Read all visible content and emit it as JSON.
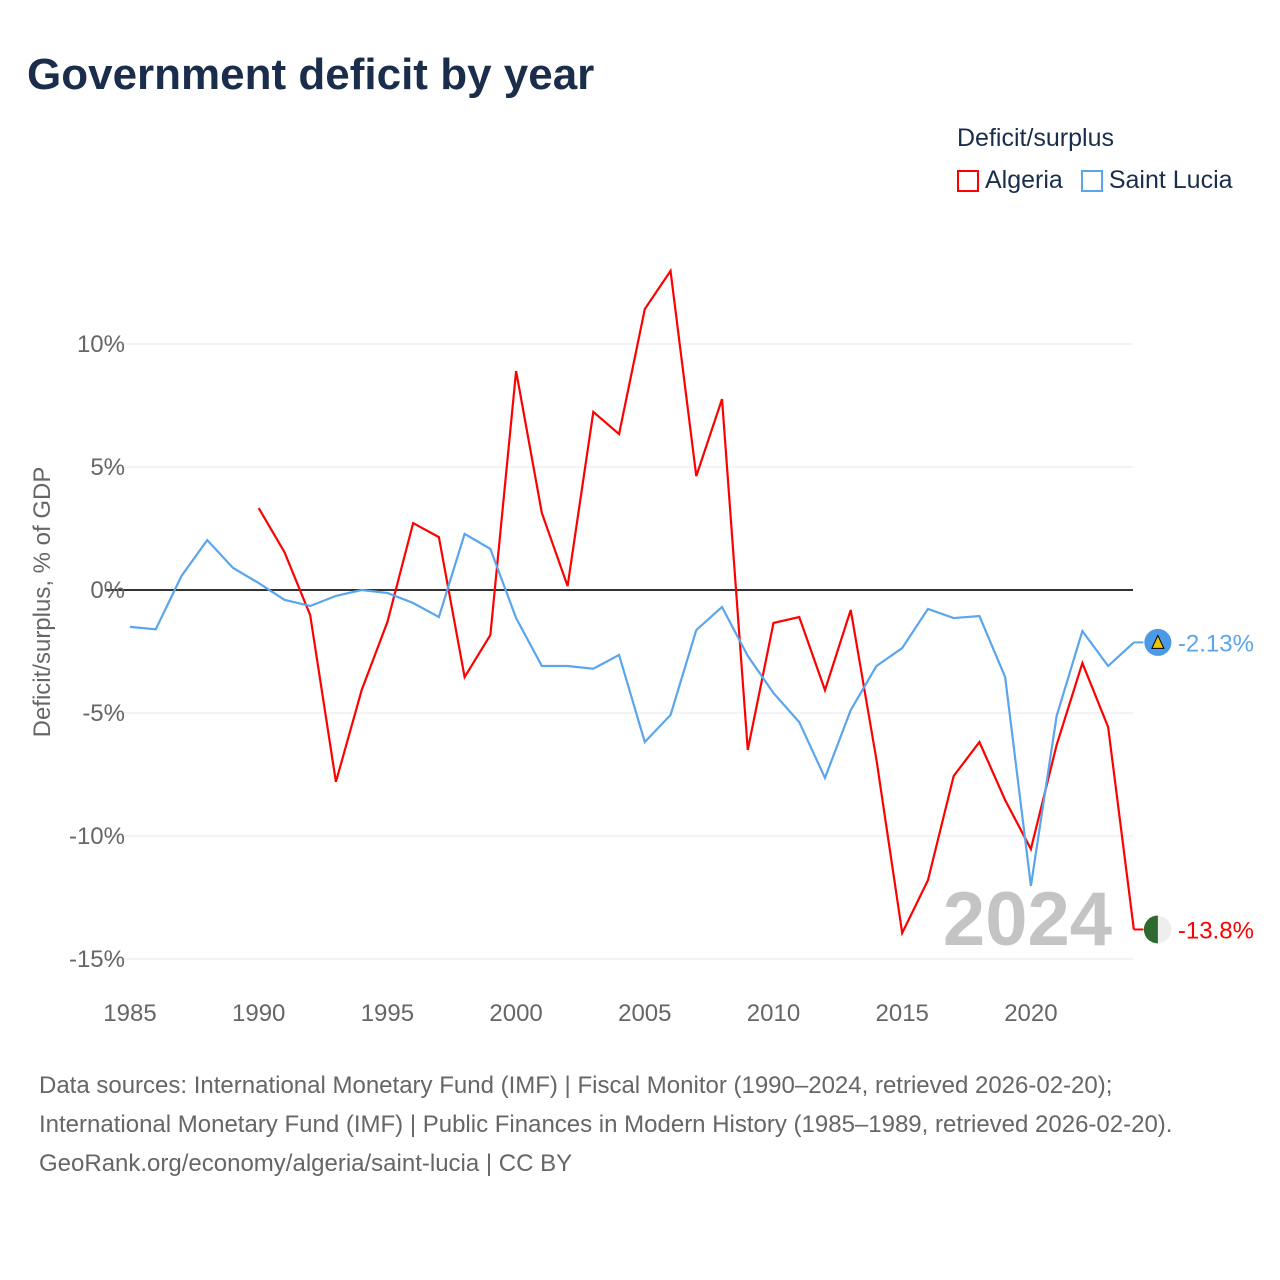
{
  "title": "Government deficit by year",
  "legend": {
    "title": "Deficit/surplus",
    "items": [
      {
        "label": "Algeria",
        "color": "#ff0000"
      },
      {
        "label": "Saint Lucia",
        "color": "#5aa5ec"
      }
    ]
  },
  "chart_data": {
    "type": "line",
    "title": "Government deficit by year",
    "xlabel": "",
    "ylabel": "Deficit/surplus, % of GDP",
    "xlim": [
      1985,
      2024
    ],
    "ylim": [
      -15,
      13.5
    ],
    "x_ticks": [
      "1985",
      "1990",
      "1995",
      "2000",
      "2005",
      "2010",
      "2015",
      "2020"
    ],
    "y_ticks": [
      {
        "v": 10,
        "label": "10%"
      },
      {
        "v": 5,
        "label": "5%"
      },
      {
        "v": 0,
        "label": "0%"
      },
      {
        "v": -5,
        "label": "-5%"
      },
      {
        "v": -10,
        "label": "-10%"
      },
      {
        "v": -15,
        "label": "-15%"
      }
    ],
    "watermark_year": "2024",
    "series": [
      {
        "name": "Algeria",
        "color": "#ff0000",
        "start": 1990,
        "end_label": "-13.8%",
        "values": [
          3.33,
          1.54,
          -1.02,
          -7.8,
          -4.07,
          -1.3,
          2.72,
          2.15,
          -3.54,
          -1.83,
          8.9,
          3.13,
          0.16,
          7.24,
          6.34,
          11.42,
          12.97,
          4.63,
          7.76,
          -6.5,
          -1.34,
          -1.1,
          -4.07,
          -0.81,
          -6.9,
          -13.94,
          -11.8,
          -7.56,
          -6.18,
          -8.54,
          -10.53,
          -6.3,
          -2.97,
          -5.57,
          -13.8
        ]
      },
      {
        "name": "Saint Lucia",
        "color": "#5aa5ec",
        "start": 1985,
        "end_label": "-2.13%",
        "values": [
          -1.5,
          -1.6,
          0.57,
          2.03,
          0.9,
          0.28,
          -0.4,
          -0.65,
          -0.24,
          0,
          -0.12,
          -0.53,
          -1.1,
          2.28,
          1.67,
          -1.14,
          -3.09,
          -3.09,
          -3.2,
          -2.64,
          -6.18,
          -5.08,
          -1.63,
          -0.69,
          -2.68,
          -4.19,
          -5.37,
          -7.64,
          -4.88,
          -3.09,
          -2.36,
          -0.77,
          -1.14,
          -1.06,
          -3.54,
          -12.03,
          -5.12,
          -1.67,
          -3.09,
          -2.13
        ]
      }
    ]
  },
  "footer": {
    "sources": "Data sources: International Monetary Fund (IMF) | Fiscal Monitor (1990–2024, retrieved 2026-02-20); International Monetary Fund (IMF) | Public Finances in Modern History (1985–1989, retrieved 2026-02-20).",
    "link": "GeoRank.org/economy/algeria/saint-lucia | CC BY"
  }
}
